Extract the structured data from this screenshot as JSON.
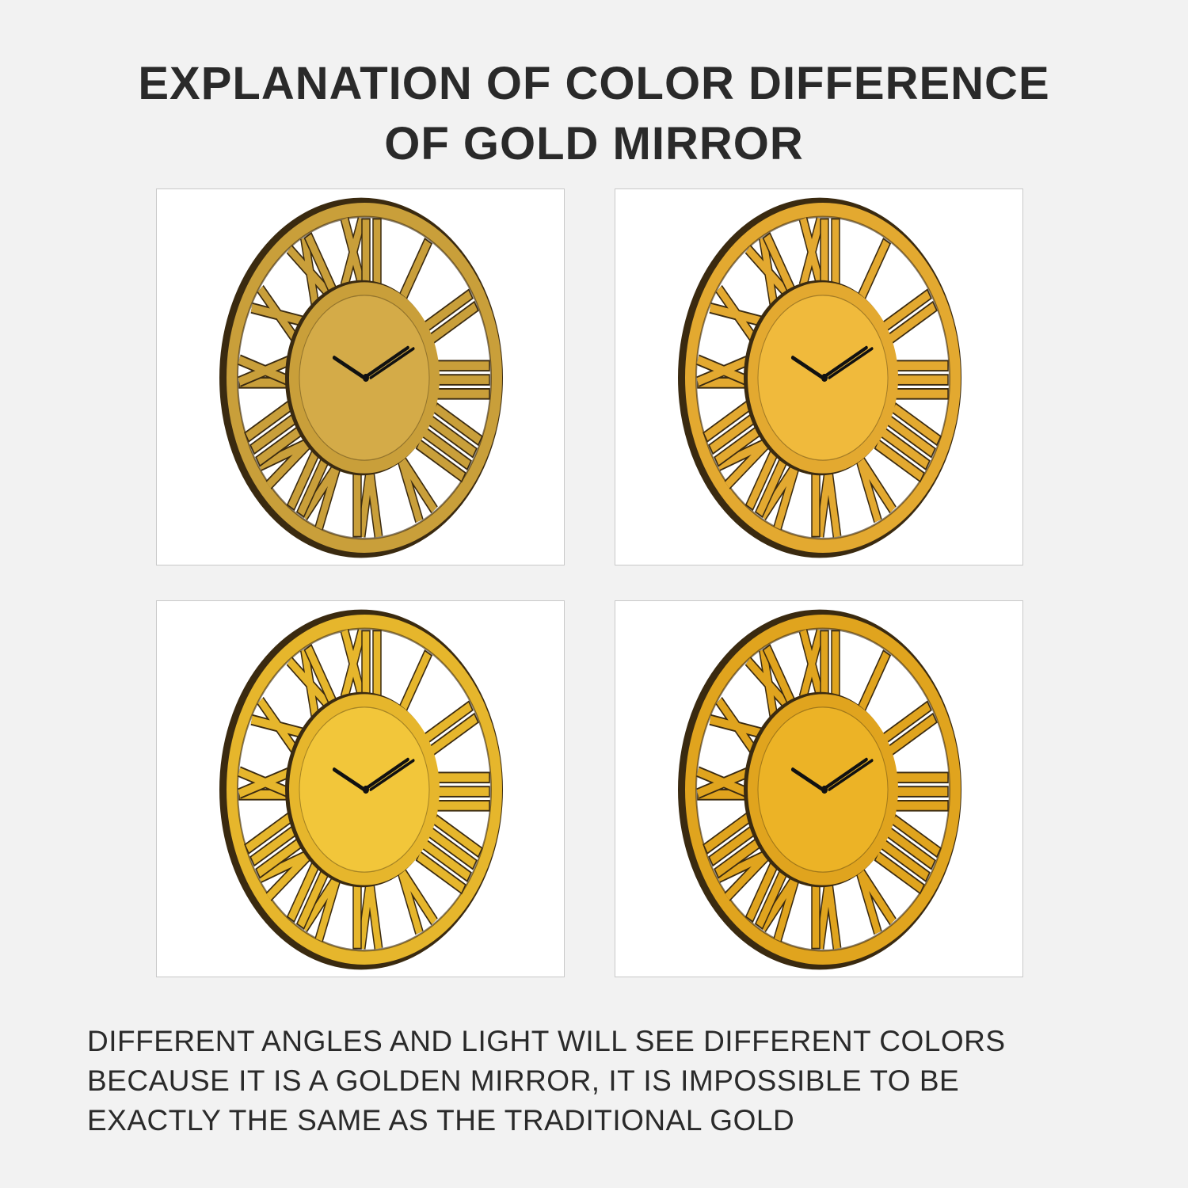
{
  "title": {
    "line1": "EXPLANATION OF COLOR DIFFERENCE",
    "line2": "OF GOLD MIRROR"
  },
  "clocks": [
    {
      "face": "#d4ab48",
      "ring": "#c99f3a",
      "shadow": "#3a2a10"
    },
    {
      "face": "#f0ba3c",
      "ring": "#e3a930",
      "shadow": "#3a2a10"
    },
    {
      "face": "#f2c63a",
      "ring": "#e6b62c",
      "shadow": "#3a2a10"
    },
    {
      "face": "#ecb326",
      "ring": "#e0a41e",
      "shadow": "#3a2a10"
    }
  ],
  "caption": {
    "line1": "DIFFERENT ANGLES AND LIGHT WILL SEE DIFFERENT COLORS",
    "line2": "BECAUSE IT IS A GOLDEN MIRROR, IT IS IMPOSSIBLE TO BE",
    "line3": "EXACTLY THE SAME AS THE TRADITIONAL GOLD"
  }
}
